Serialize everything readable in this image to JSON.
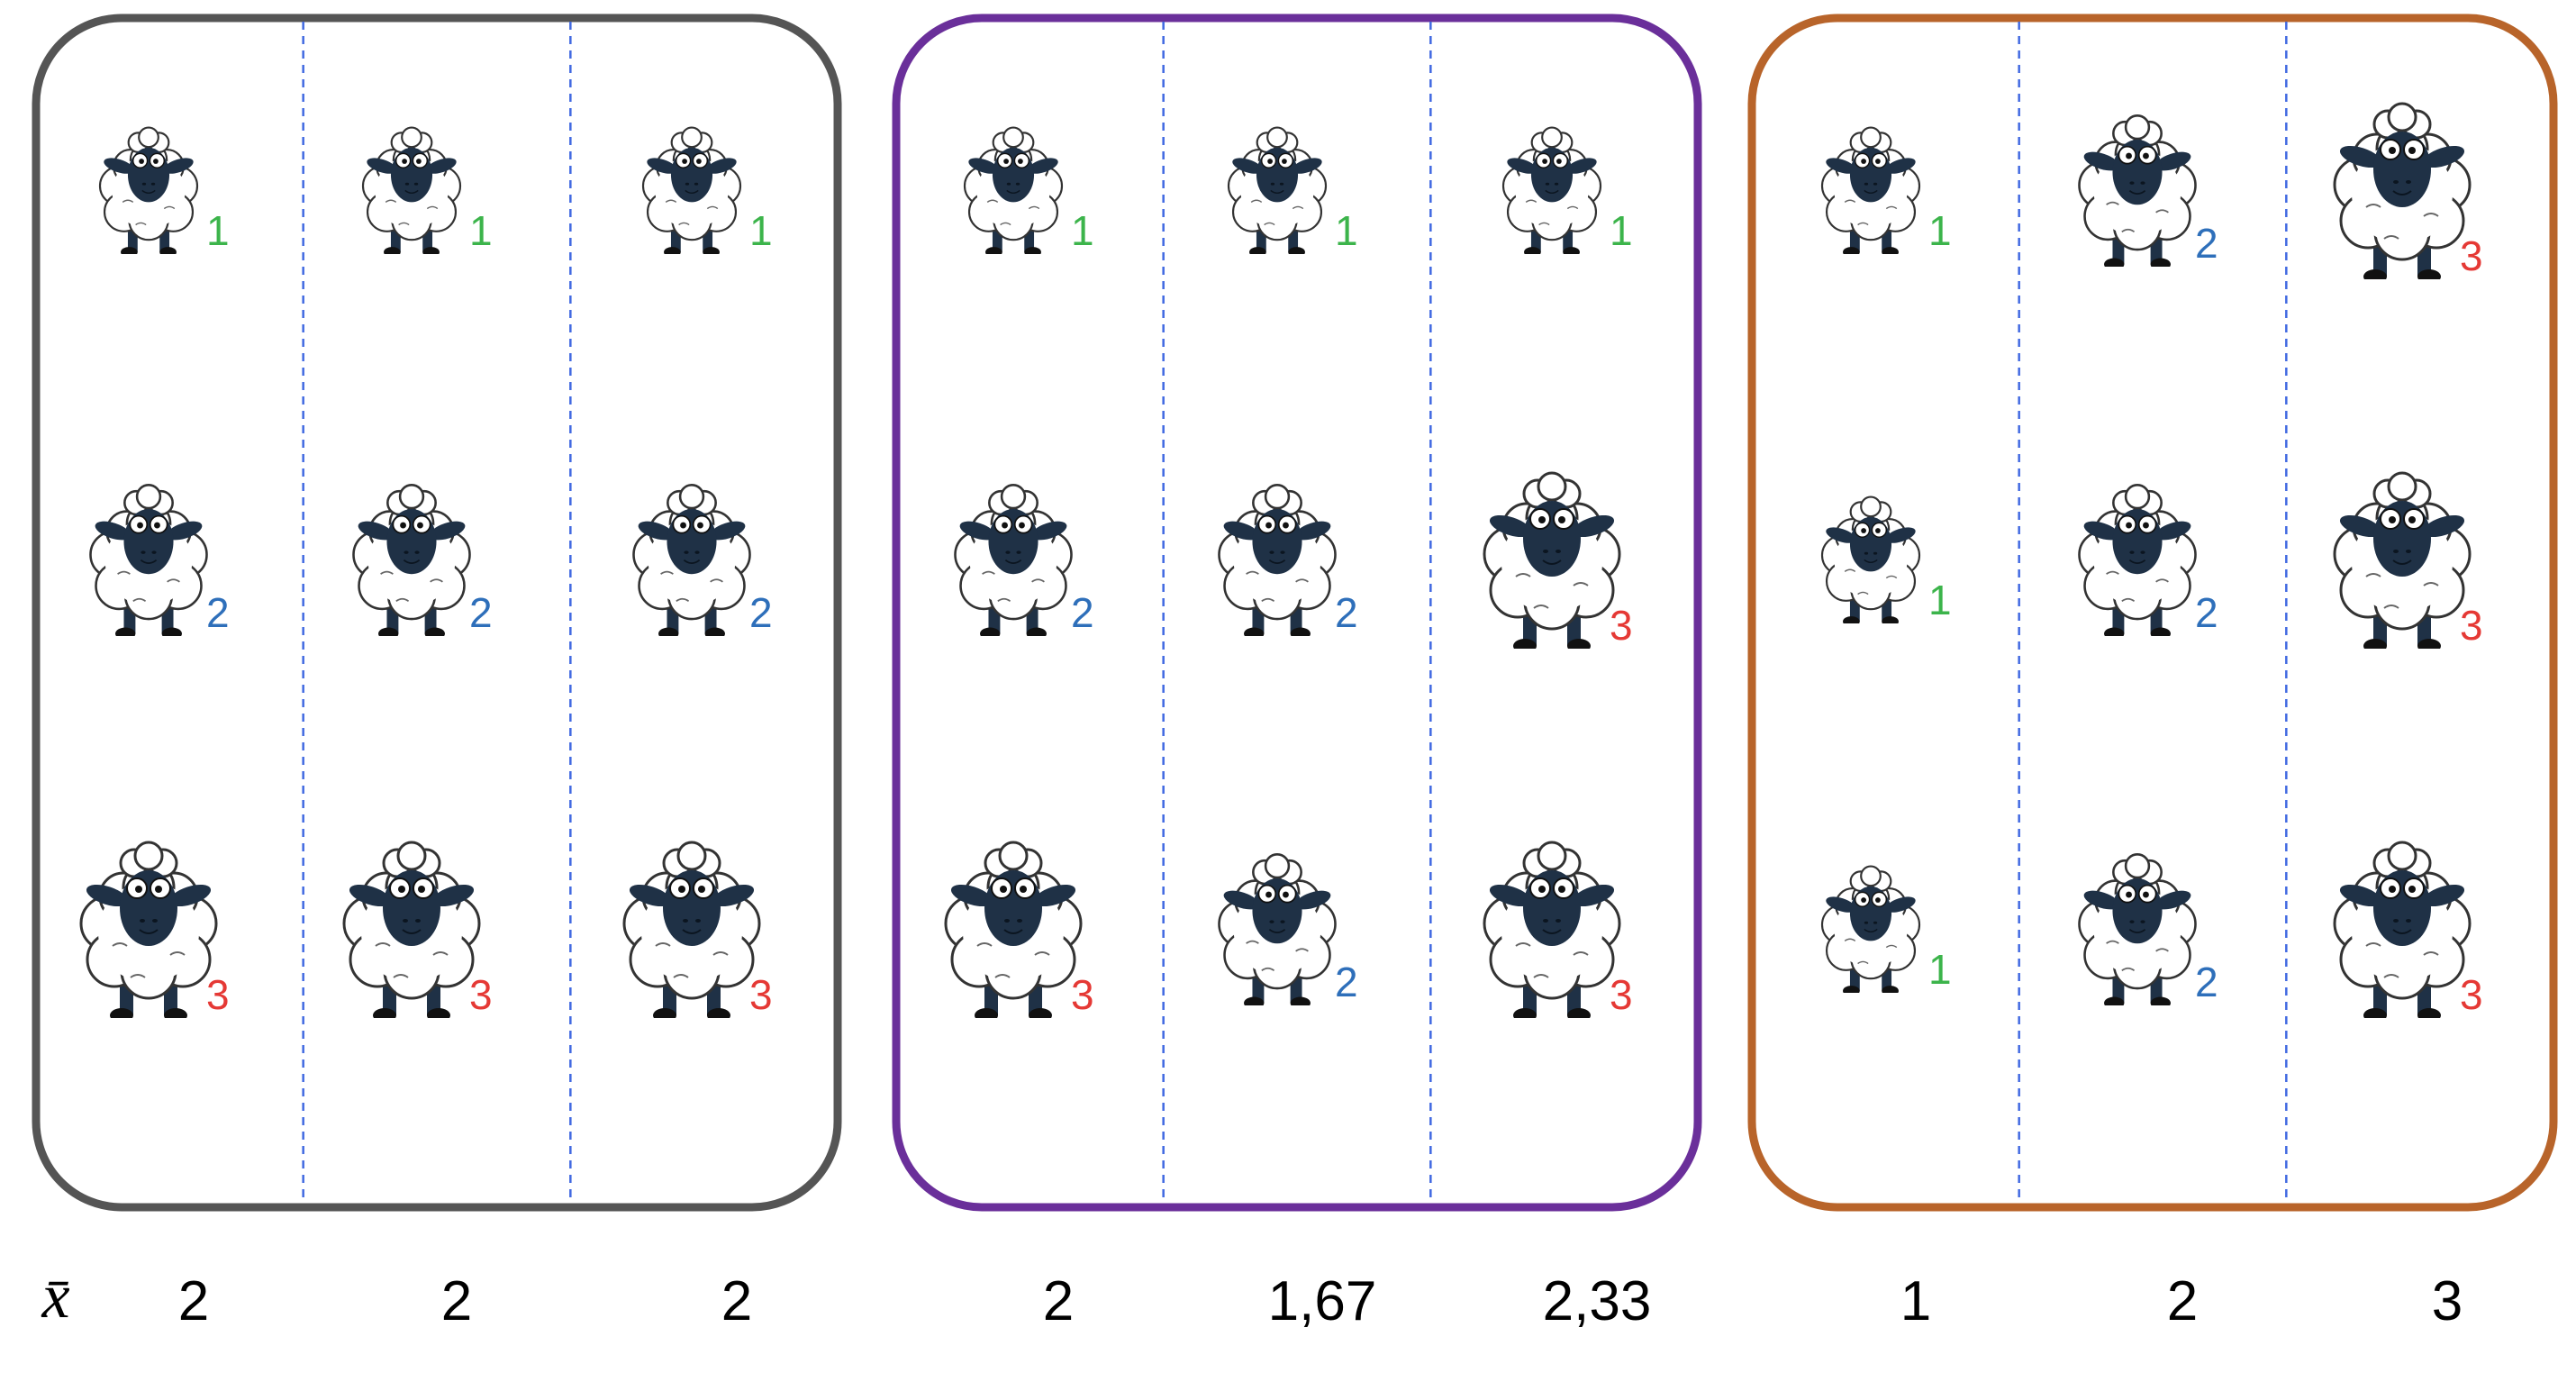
{
  "mean_symbol": "x̄",
  "colors": {
    "size_1": "#3cb44b",
    "size_2": "#2e6fba",
    "size_3": "#e53935",
    "divider": "#4169e1",
    "wool": "#ffffff",
    "face": "#1f3146"
  },
  "panels": [
    {
      "border_color": "#555555",
      "columns": [
        {
          "sheep": [
            "1",
            "2",
            "3"
          ],
          "mean": "2"
        },
        {
          "sheep": [
            "1",
            "2",
            "3"
          ],
          "mean": "2"
        },
        {
          "sheep": [
            "1",
            "2",
            "3"
          ],
          "mean": "2"
        }
      ]
    },
    {
      "border_color": "#6a2f9a",
      "columns": [
        {
          "sheep": [
            "1",
            "2",
            "3"
          ],
          "mean": "2"
        },
        {
          "sheep": [
            "1",
            "2",
            "2"
          ],
          "mean": "1,67"
        },
        {
          "sheep": [
            "1",
            "3",
            "3"
          ],
          "mean": "2,33"
        }
      ]
    },
    {
      "border_color": "#b8642a",
      "columns": [
        {
          "sheep": [
            "1",
            "1",
            "1"
          ],
          "mean": "1"
        },
        {
          "sheep": [
            "2",
            "2",
            "2"
          ],
          "mean": "2"
        },
        {
          "sheep": [
            "3",
            "3",
            "3"
          ],
          "mean": "3"
        }
      ]
    }
  ]
}
